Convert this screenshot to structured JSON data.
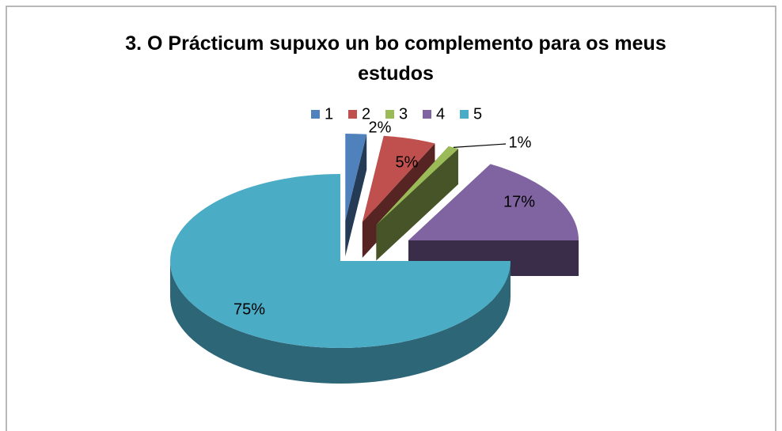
{
  "chart_data": {
    "type": "pie",
    "title": "3. O Prácticum supuxo un bo complemento para os meus estudos",
    "categories": [
      "1",
      "2",
      "3",
      "4",
      "5"
    ],
    "values": [
      2,
      5,
      1,
      17,
      75
    ],
    "value_labels": [
      "2%",
      "5%",
      "1%",
      "17%",
      "75%"
    ],
    "colors": [
      "#4f81bd",
      "#c0504d",
      "#9bbb59",
      "#8064a2",
      "#4bacc6"
    ],
    "legend": "top"
  }
}
